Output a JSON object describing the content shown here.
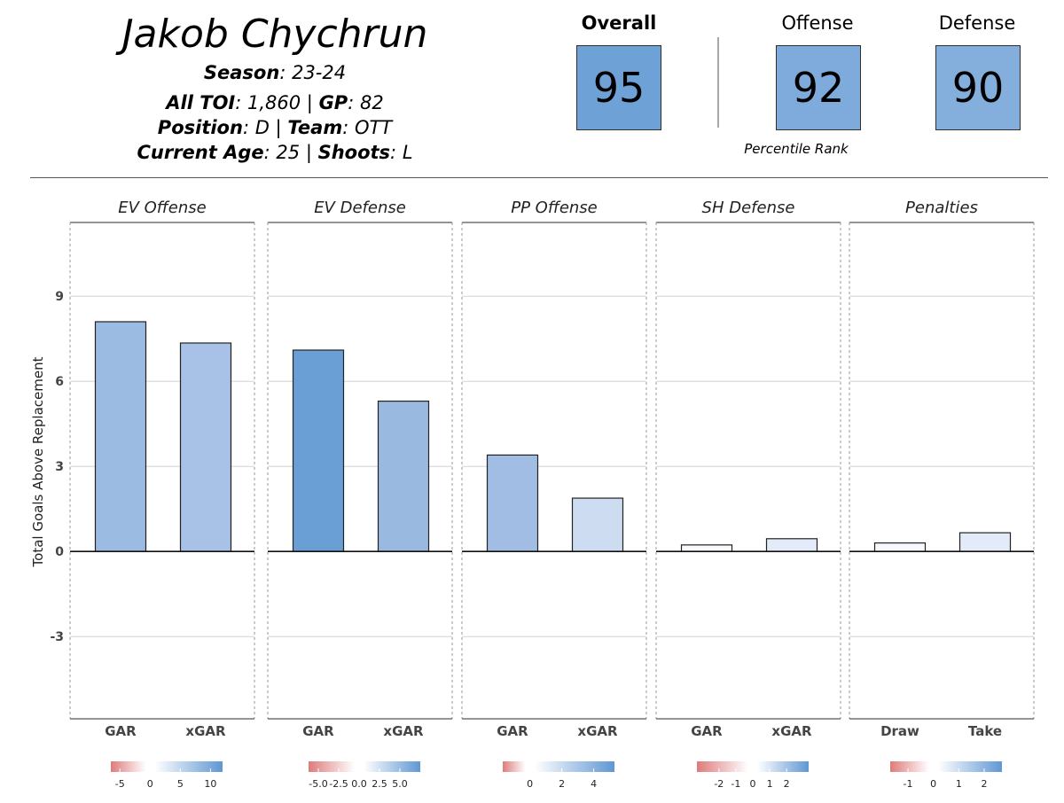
{
  "player": {
    "name": "Jakob Chychrun",
    "season_label": "Season",
    "season": "23-24",
    "toi_label": "All TOI",
    "toi": "1,860",
    "gp_label": "GP",
    "gp": "82",
    "position_label": "Position",
    "position": "D",
    "team_label": "Team",
    "team": "OTT",
    "age_label": "Current Age",
    "age": "25",
    "shoots_label": "Shoots",
    "shoots": "L"
  },
  "ratings": {
    "overall_label": "Overall",
    "overall": "95",
    "overall_color": "#6ea2d6",
    "offense_label": "Offense",
    "offense": "92",
    "offense_color": "#7eabdb",
    "defense_label": "Defense",
    "defense": "90",
    "defense_color": "#84aedc",
    "caption": "Percentile Rank"
  },
  "chart_data": {
    "type": "bar",
    "ylabel": "Total Goals Above Replacement",
    "ylim": [
      -5.9,
      11.6
    ],
    "yticks": [
      "-3",
      "0",
      "3",
      "6",
      "9"
    ],
    "ytick_values": [
      -3,
      0,
      3,
      6,
      9
    ],
    "grid": true,
    "panels": [
      {
        "title": "EV Offense",
        "categories": [
          "GAR",
          "xGAR"
        ],
        "values": [
          8.1,
          7.35
        ],
        "colors": [
          "#9bbbe3",
          "#a8c1e7"
        ],
        "colorbar": {
          "min": -6.5,
          "max": 12,
          "ticks": [
            "-5",
            "0",
            "5",
            "10"
          ],
          "tick_values": [
            -5,
            0,
            5,
            10
          ]
        }
      },
      {
        "title": "EV Defense",
        "categories": [
          "GAR",
          "xGAR"
        ],
        "values": [
          7.1,
          5.3
        ],
        "colors": [
          "#6a9fd5",
          "#9ab9e0"
        ],
        "colorbar": {
          "min": -6.2,
          "max": 7.5,
          "ticks": [
            "-5.0",
            "-2.5",
            "0.0",
            "2.5",
            "5.0"
          ],
          "tick_values": [
            -5,
            -2.5,
            0,
            2.5,
            5
          ]
        }
      },
      {
        "title": "PP Offense",
        "categories": [
          "GAR",
          "xGAR"
        ],
        "values": [
          3.4,
          1.88
        ],
        "colors": [
          "#a2bde4",
          "#cedcf1"
        ],
        "colorbar": {
          "min": -1.7,
          "max": 5.3,
          "ticks": [
            "0",
            "2",
            "4"
          ],
          "tick_values": [
            0,
            2,
            4
          ]
        }
      },
      {
        "title": "SH Defense",
        "categories": [
          "GAR",
          "xGAR"
        ],
        "values": [
          0.23,
          0.45
        ],
        "colors": [
          "#f7f9fd",
          "#e3ebf8"
        ],
        "colorbar": {
          "min": -3.3,
          "max": 3.3,
          "ticks": [
            "-2",
            "-1",
            "0",
            "1",
            "2"
          ],
          "tick_values": [
            -2,
            -1,
            0,
            1,
            2
          ]
        }
      },
      {
        "title": "Penalties",
        "categories": [
          "Draw",
          "Take"
        ],
        "values": [
          0.3,
          0.66
        ],
        "colors": [
          "#f6f8fd",
          "#e3ebf8"
        ],
        "colorbar": {
          "min": -1.7,
          "max": 2.7,
          "ticks": [
            "-1",
            "0",
            "1",
            "2"
          ],
          "tick_values": [
            -1,
            0,
            1,
            2
          ]
        }
      }
    ]
  }
}
